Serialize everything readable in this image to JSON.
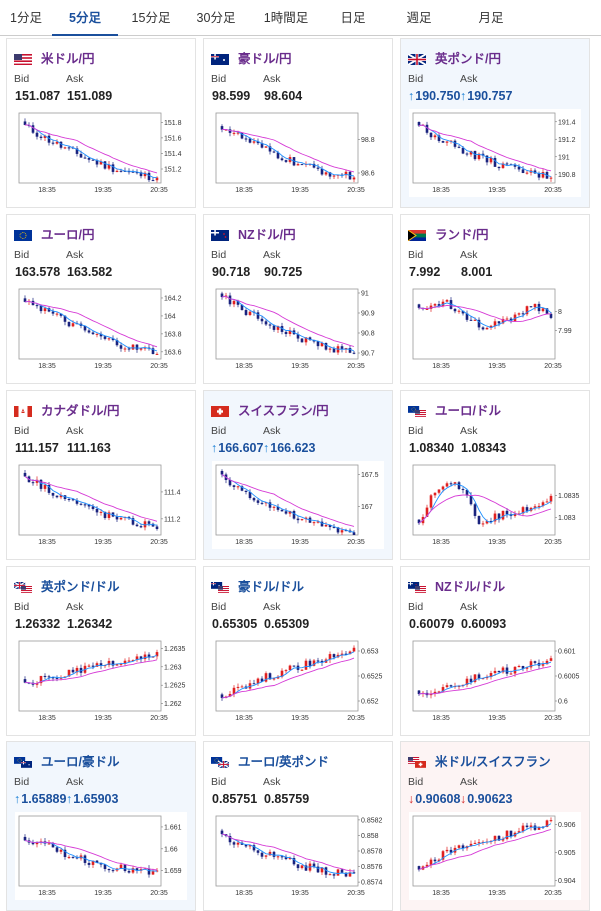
{
  "tabs": [
    {
      "label": "1分足",
      "active": false
    },
    {
      "label": "5分足",
      "active": true
    },
    {
      "label": "15分足",
      "active": false
    },
    {
      "label": "30分足",
      "active": false
    },
    {
      "label": "1時間足",
      "active": false
    },
    {
      "label": "日足",
      "active": false
    },
    {
      "label": "週足",
      "active": false
    },
    {
      "label": "月足",
      "active": false
    }
  ],
  "labels": {
    "bid": "Bid",
    "ask": "Ask"
  },
  "colors": {
    "purple": "#6a2d8c",
    "blue": "#1a4f9c",
    "up_arrow": "#1a7fd6",
    "down_arrow": "#d42b2b",
    "candle_up": "#e02020",
    "candle_down": "#1a237e",
    "ma_short": "#1e90ff",
    "ma_long": "#d63bd6"
  },
  "cards": [
    {
      "name": "米ドル/円",
      "flag": "us-flag",
      "name_color": "purple",
      "state": "none",
      "bid": "151.087",
      "ask": "151.089",
      "bid_arrow": "",
      "ask_arrow": "",
      "chart": {
        "x_ticks": [
          "18:35",
          "19:35",
          "20:35"
        ],
        "y_ticks": [
          "151.8",
          "151.6",
          "151.4",
          "151.2"
        ],
        "y_range": [
          151.02,
          151.92
        ],
        "trend": "down",
        "start": 151.75,
        "end": 151.1
      }
    },
    {
      "name": "豪ドル/円",
      "flag": "au-flag",
      "name_color": "purple",
      "state": "none",
      "bid": "98.599",
      "ask": "98.604",
      "bid_arrow": "",
      "ask_arrow": "",
      "chart": {
        "x_ticks": [
          "18:35",
          "19:35",
          "20:35"
        ],
        "y_ticks": [
          "98.8",
          "98.6"
        ],
        "y_range": [
          98.54,
          98.96
        ],
        "trend": "down",
        "start": 98.88,
        "end": 98.58
      }
    },
    {
      "name": "英ポンド/円",
      "flag": "uk-flag",
      "name_color": "purple",
      "state": "up",
      "bid": "190.750",
      "ask": "190.757",
      "bid_arrow": "↑",
      "ask_arrow": "↑",
      "chart": {
        "x_ticks": [
          "18:35",
          "19:35",
          "20:35"
        ],
        "y_ticks": [
          "191.4",
          "191.2",
          "191",
          "190.8"
        ],
        "y_range": [
          190.7,
          191.5
        ],
        "trend": "down",
        "start": 191.35,
        "end": 190.78
      }
    },
    {
      "name": "ユーロ/円",
      "flag": "eu-flag",
      "name_color": "purple",
      "state": "none",
      "bid": "163.578",
      "ask": "163.582",
      "bid_arrow": "",
      "ask_arrow": "",
      "chart": {
        "x_ticks": [
          "18:35",
          "19:35",
          "20:35"
        ],
        "y_ticks": [
          "164.2",
          "164",
          "163.8",
          "163.6"
        ],
        "y_range": [
          163.52,
          164.3
        ],
        "trend": "down",
        "start": 164.2,
        "end": 163.6
      }
    },
    {
      "name": "NZドル/円",
      "flag": "nz-flag",
      "name_color": "purple",
      "state": "none",
      "bid": "90.718",
      "ask": "90.725",
      "bid_arrow": "",
      "ask_arrow": "",
      "chart": {
        "x_ticks": [
          "18:35",
          "19:35",
          "20:35"
        ],
        "y_ticks": [
          "91",
          "90.9",
          "90.8",
          "90.7"
        ],
        "y_range": [
          90.67,
          91.02
        ],
        "trend": "down",
        "start": 90.98,
        "end": 90.71
      }
    },
    {
      "name": "ランド/円",
      "flag": "za-flag",
      "name_color": "purple",
      "state": "none",
      "bid": "7.992",
      "ask": "8.001",
      "bid_arrow": "",
      "ask_arrow": "",
      "chart": {
        "x_ticks": [
          "18:35",
          "19:35",
          "20:35"
        ],
        "y_ticks": [
          "8",
          "7.99"
        ],
        "y_range": [
          7.975,
          8.012
        ],
        "trend": "flat",
        "start": 8.0,
        "end": 7.996
      }
    },
    {
      "name": "カナダドル/円",
      "flag": "ca-flag",
      "name_color": "purple",
      "state": "none",
      "bid": "111.157",
      "ask": "111.163",
      "bid_arrow": "",
      "ask_arrow": "",
      "chart": {
        "x_ticks": [
          "18:35",
          "19:35",
          "20:35"
        ],
        "y_ticks": [
          "111.4",
          "111.2"
        ],
        "y_range": [
          111.08,
          111.6
        ],
        "trend": "down",
        "start": 111.52,
        "end": 111.15
      }
    },
    {
      "name": "スイスフラン/円",
      "flag": "ch-flag",
      "name_color": "purple",
      "state": "up",
      "bid": "166.607",
      "ask": "166.623",
      "bid_arrow": "↑",
      "ask_arrow": "↑",
      "chart": {
        "x_ticks": [
          "18:35",
          "19:35",
          "20:35"
        ],
        "y_ticks": [
          "167.5",
          "167"
        ],
        "y_range": [
          166.55,
          167.65
        ],
        "trend": "down",
        "start": 167.45,
        "end": 166.6
      }
    },
    {
      "name": "ユーロ/ドル",
      "flag": "eu-us-flag",
      "name_color": "purple",
      "state": "none",
      "bid": "1.08340",
      "ask": "1.08343",
      "bid_arrow": "",
      "ask_arrow": "",
      "chart": {
        "x_ticks": [
          "18:35",
          "19:35",
          "20:35"
        ],
        "y_ticks": [
          "1.0835",
          "1.083"
        ],
        "y_range": [
          1.0826,
          1.0842
        ],
        "trend": "vshape",
        "start": 1.0829,
        "end": 1.0834
      }
    },
    {
      "name": "英ポンド/ドル",
      "flag": "uk-us-flag",
      "name_color": "blue",
      "state": "none",
      "bid": "1.26332",
      "ask": "1.26342",
      "bid_arrow": "",
      "ask_arrow": "",
      "chart": {
        "x_ticks": [
          "18:35",
          "19:35",
          "20:35"
        ],
        "y_ticks": [
          "1.2635",
          "1.263",
          "1.2625",
          "1.262"
        ],
        "y_range": [
          1.2618,
          1.2637
        ],
        "trend": "up",
        "start": 1.2625,
        "end": 1.2633
      }
    },
    {
      "name": "豪ドル/ドル",
      "flag": "au-us-flag",
      "name_color": "blue",
      "state": "none",
      "bid": "0.65305",
      "ask": "0.65309",
      "bid_arrow": "",
      "ask_arrow": "",
      "chart": {
        "x_ticks": [
          "18:35",
          "19:35",
          "20:35"
        ],
        "y_ticks": [
          "0.653",
          "0.6525",
          "0.652"
        ],
        "y_range": [
          0.6518,
          0.6532
        ],
        "trend": "up",
        "start": 0.6521,
        "end": 0.653
      }
    },
    {
      "name": "NZドル/ドル",
      "flag": "nz-us-flag",
      "name_color": "purple",
      "state": "none",
      "bid": "0.60079",
      "ask": "0.60093",
      "bid_arrow": "",
      "ask_arrow": "",
      "chart": {
        "x_ticks": [
          "18:35",
          "19:35",
          "20:35"
        ],
        "y_ticks": [
          "0.601",
          "0.6005",
          "0.6"
        ],
        "y_range": [
          0.5998,
          0.6012
        ],
        "trend": "up",
        "start": 0.6001,
        "end": 0.6008
      }
    },
    {
      "name": "ユーロ/豪ドル",
      "flag": "eu-au-flag",
      "name_color": "blue",
      "state": "up",
      "bid": "1.65889",
      "ask": "1.65903",
      "bid_arrow": "↑",
      "ask_arrow": "↑",
      "chart": {
        "x_ticks": [
          "18:35",
          "19:35",
          "20:35"
        ],
        "y_ticks": [
          "1.661",
          "1.66",
          "1.659"
        ],
        "y_range": [
          1.6583,
          1.6615
        ],
        "trend": "down",
        "start": 1.6605,
        "end": 1.6589
      }
    },
    {
      "name": "ユーロ/英ポンド",
      "flag": "eu-uk-flag",
      "name_color": "blue",
      "state": "none",
      "bid": "0.85751",
      "ask": "0.85759",
      "bid_arrow": "",
      "ask_arrow": "",
      "chart": {
        "x_ticks": [
          "18:35",
          "19:35",
          "20:35"
        ],
        "y_ticks": [
          "0.8582",
          "0.858",
          "0.8578",
          "0.8576",
          "0.8574"
        ],
        "y_range": [
          0.85735,
          0.85825
        ],
        "trend": "down",
        "start": 0.858,
        "end": 0.8575
      }
    },
    {
      "name": "米ドル/スイスフラン",
      "flag": "us-ch-flag",
      "name_color": "blue",
      "state": "down",
      "bid": "0.90608",
      "ask": "0.90623",
      "bid_arrow": "↓",
      "ask_arrow": "↓",
      "chart": {
        "x_ticks": [
          "18:35",
          "19:35",
          "20:35"
        ],
        "y_ticks": [
          "0.906",
          "0.905",
          "0.904"
        ],
        "y_range": [
          0.9038,
          0.9063
        ],
        "trend": "up",
        "start": 0.9045,
        "end": 0.9061
      }
    }
  ]
}
